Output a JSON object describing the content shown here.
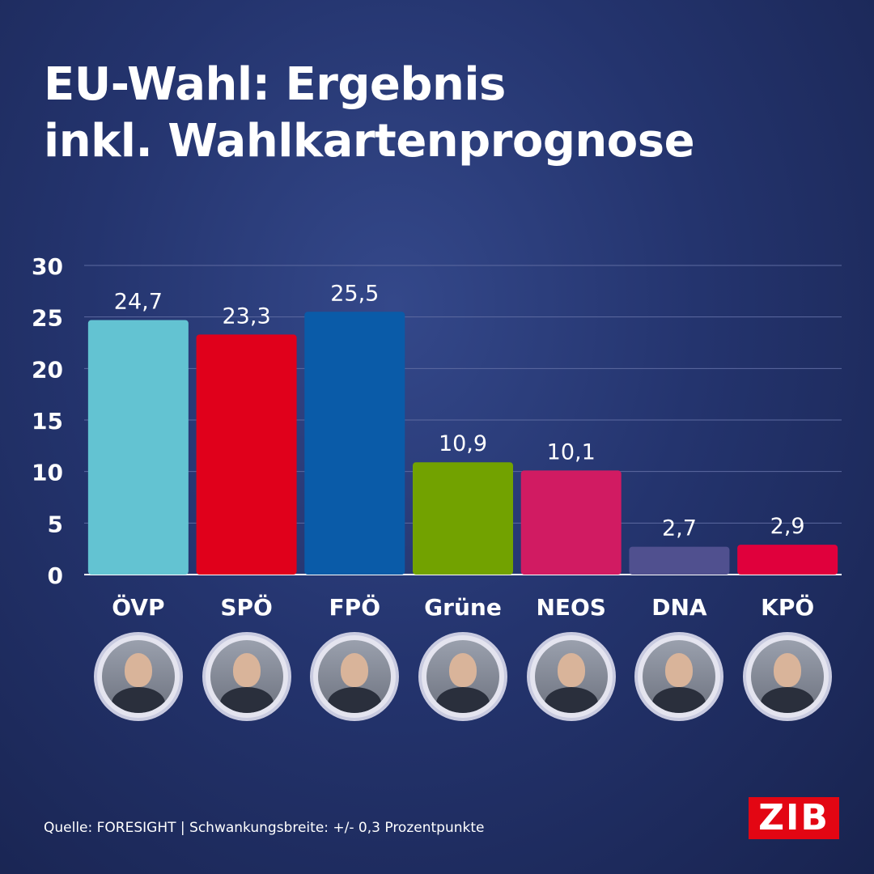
{
  "title": {
    "line1": "EU-Wahl: Ergebnis",
    "line2": "inkl. Wahlkartenprognose"
  },
  "chart_data": {
    "type": "bar",
    "categories": [
      "ÖVP",
      "SPÖ",
      "FPÖ",
      "Grüne",
      "NEOS",
      "DNA",
      "KPÖ"
    ],
    "values": [
      24.7,
      23.3,
      25.5,
      10.9,
      10.1,
      2.7,
      2.9
    ],
    "value_labels": [
      "24,7",
      "23,3",
      "25,5",
      "10,9",
      "10,1",
      "2,7",
      "2,9"
    ],
    "colors": [
      "#63c3d2",
      "#e0001b",
      "#0a5ba8",
      "#72a200",
      "#d11b62",
      "#50508f",
      "#e0003c"
    ],
    "ylim": [
      0,
      30
    ],
    "yticks": [
      "0",
      "5",
      "10",
      "15",
      "20",
      "25",
      "30"
    ],
    "grid": true
  },
  "avatars": [
    {
      "party": "ÖVP",
      "icon": "candidate-portrait"
    },
    {
      "party": "SPÖ",
      "icon": "candidate-portrait"
    },
    {
      "party": "FPÖ",
      "icon": "candidate-portrait"
    },
    {
      "party": "Grüne",
      "icon": "candidate-portrait"
    },
    {
      "party": "NEOS",
      "icon": "candidate-portrait"
    },
    {
      "party": "DNA",
      "icon": "candidate-portrait"
    },
    {
      "party": "KPÖ",
      "icon": "candidate-portrait"
    }
  ],
  "footer": {
    "source": "Quelle: FORESIGHT | Schwankungsbreite: +/- 0,3 Prozentpunkte"
  },
  "logo": {
    "text": "ZIB"
  }
}
